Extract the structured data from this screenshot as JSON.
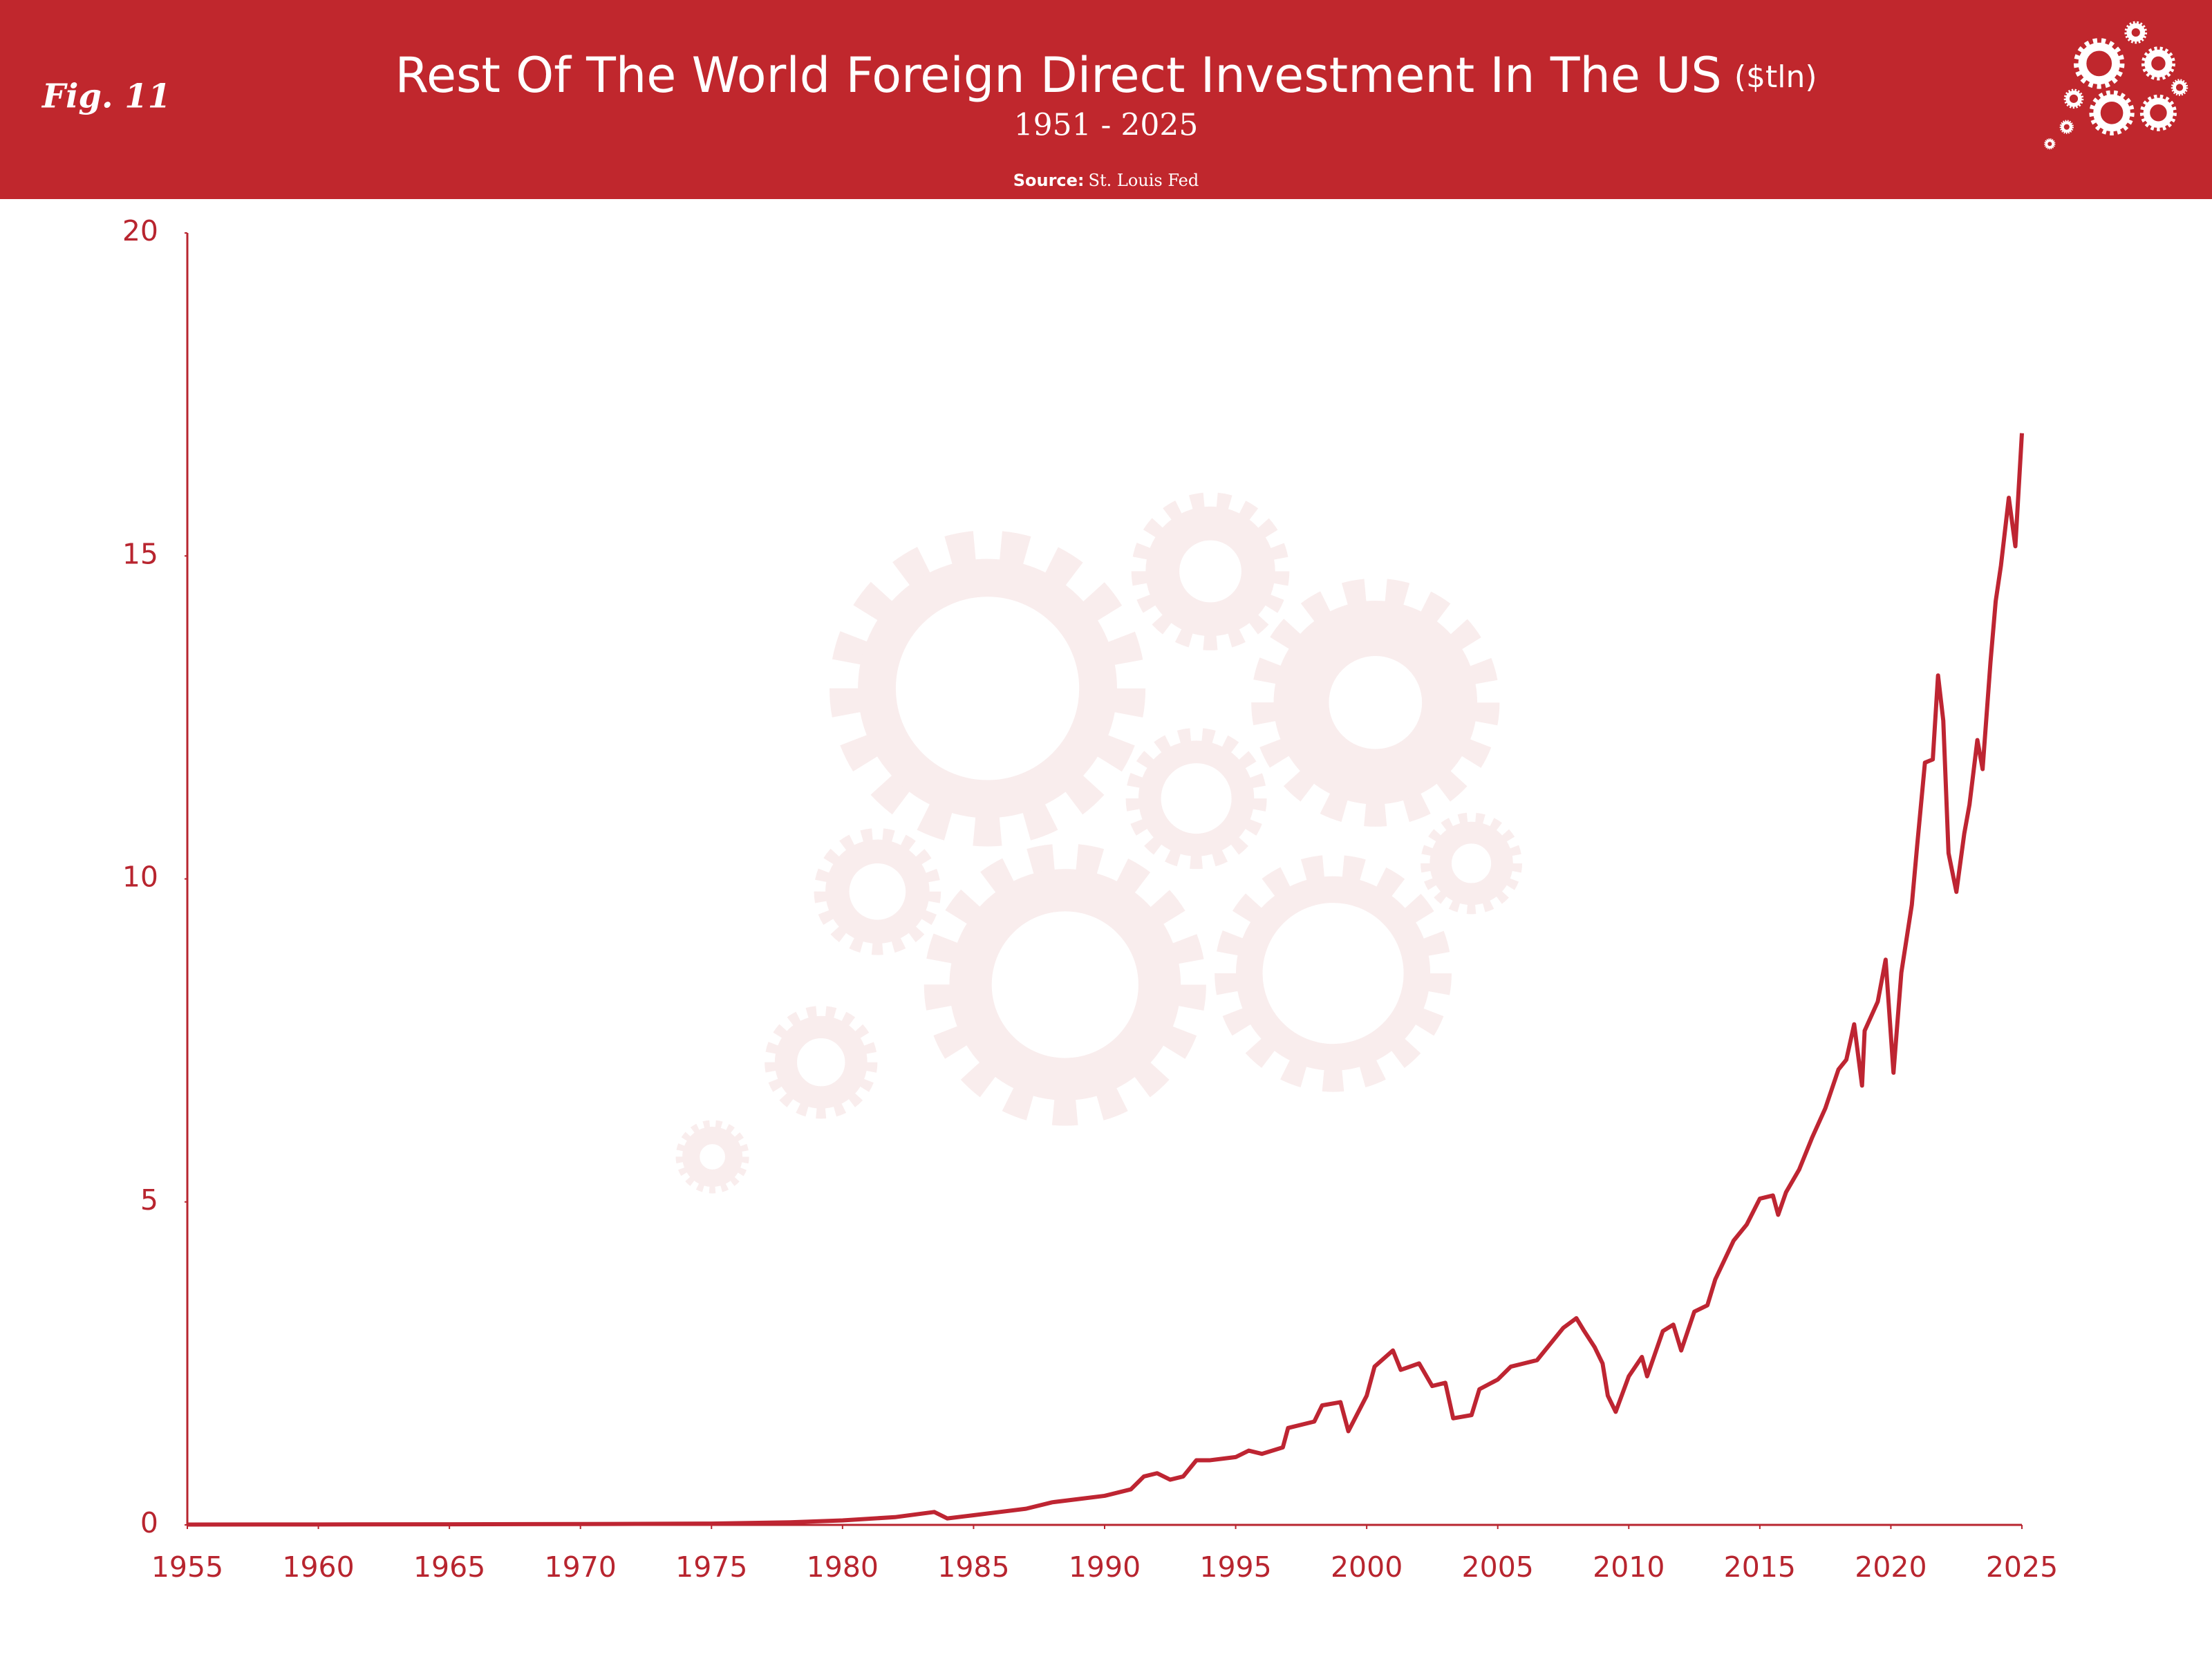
{
  "chart_data": {
    "type": "line",
    "figure_label": "Fig. 11",
    "title": "Rest Of The World Foreign Direct Investment In The US",
    "units": "($tln)",
    "subtitle": "1951 - 2025",
    "source_label": "Source:",
    "source": "St. Louis Fed",
    "xlim": [
      1955,
      2025
    ],
    "xticks": [
      1955,
      1960,
      1965,
      1970,
      1975,
      1980,
      1985,
      1990,
      1995,
      2000,
      2005,
      2010,
      2015,
      2020,
      2025
    ],
    "ylim": [
      0,
      20
    ],
    "yticks": [
      0,
      5,
      10,
      15,
      20
    ],
    "grid": false,
    "x": [
      1955,
      1960,
      1965,
      1970,
      1975,
      1978,
      1980,
      1982,
      1983.5,
      1984,
      1985,
      1986,
      1987,
      1988,
      1989,
      1990,
      1991,
      1991.5,
      1992,
      1992.5,
      1993,
      1993.5,
      1994,
      1995,
      1995.5,
      1996,
      1996.8,
      1997,
      1998,
      1998.3,
      1999,
      1999.3,
      2000,
      2000.3,
      2001,
      2001.3,
      2002,
      2002.5,
      2003,
      2003.3,
      2004,
      2004.3,
      2005,
      2005.5,
      2006,
      2006.5,
      2007,
      2007.5,
      2008,
      2008.3,
      2008.7,
      2009,
      2009.2,
      2009.5,
      2010,
      2010.5,
      2010.7,
      2011.3,
      2011.7,
      2012,
      2012.5,
      2013,
      2013.3,
      2014,
      2014.5,
      2015,
      2015.5,
      2015.7,
      2016,
      2016.5,
      2017,
      2017.5,
      2018,
      2018.3,
      2018.6,
      2018.9,
      2019,
      2019.5,
      2019.8,
      2020.1,
      2020.4,
      2020.8,
      2021,
      2021.3,
      2021.6,
      2021.8,
      2022,
      2022.2,
      2022.5,
      2022.8,
      2023,
      2023.3,
      2023.5,
      2023.8,
      2024,
      2024.2,
      2024.5,
      2024.75,
      2025
    ],
    "series": [
      {
        "name": "Foreign Direct Investment",
        "color": "#be2532",
        "values": [
          0.005,
          0.007,
          0.01,
          0.013,
          0.02,
          0.04,
          0.07,
          0.12,
          0.2,
          0.1,
          0.15,
          0.2,
          0.25,
          0.35,
          0.4,
          0.45,
          0.55,
          0.75,
          0.8,
          0.7,
          0.75,
          1.0,
          1.0,
          1.05,
          1.15,
          1.1,
          1.2,
          1.5,
          1.6,
          1.85,
          1.9,
          1.45,
          2.0,
          2.45,
          2.7,
          2.4,
          2.5,
          2.15,
          2.2,
          1.65,
          1.7,
          2.1,
          2.25,
          2.45,
          2.5,
          2.55,
          2.8,
          3.05,
          3.2,
          3.0,
          2.75,
          2.5,
          2.0,
          1.75,
          2.3,
          2.6,
          2.3,
          3.0,
          3.1,
          2.7,
          3.3,
          3.4,
          3.8,
          4.4,
          4.65,
          5.05,
          5.1,
          4.8,
          5.15,
          5.5,
          6.0,
          6.45,
          7.05,
          7.2,
          7.75,
          6.8,
          7.65,
          8.1,
          8.75,
          7.0,
          8.55,
          9.6,
          10.5,
          11.8,
          11.85,
          13.15,
          12.45,
          10.4,
          9.8,
          10.7,
          11.15,
          12.15,
          11.7,
          13.35,
          14.3,
          14.85,
          15.9,
          15.15,
          16.9
        ]
      }
    ]
  }
}
